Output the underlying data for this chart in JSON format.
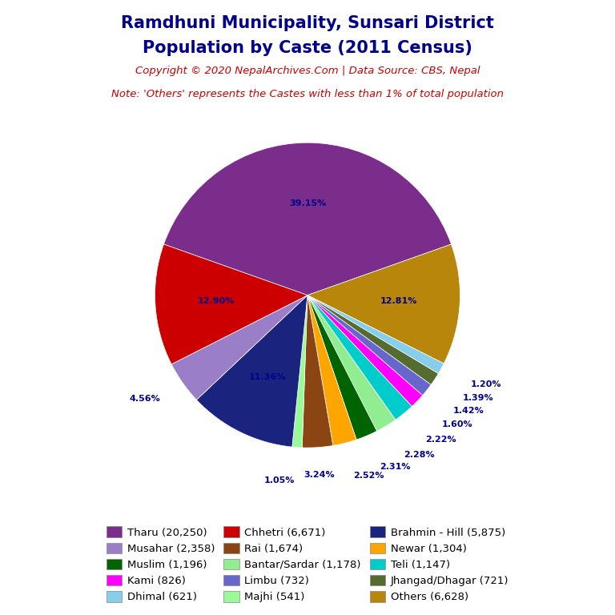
{
  "title_line1": "Ramdhuni Municipality, Sunsari District",
  "title_line2": "Population by Caste (2011 Census)",
  "copyright": "Copyright © 2020 NepalArchives.Com | Data Source: CBS, Nepal",
  "note": "Note: 'Others' represents the Castes with less than 1% of total population",
  "slices": [
    {
      "label": "Tharu",
      "value": 20250,
      "color": "#7B2D8B"
    },
    {
      "label": "Others",
      "value": 6628,
      "color": "#B8860B"
    },
    {
      "label": "Dhimal",
      "value": 621,
      "color": "#87CEEB"
    },
    {
      "label": "Jhangad/Dhagar",
      "value": 721,
      "color": "#556B2F"
    },
    {
      "label": "Limbu",
      "value": 732,
      "color": "#6666CC"
    },
    {
      "label": "Kami",
      "value": 826,
      "color": "#FF00FF"
    },
    {
      "label": "Teli",
      "value": 1147,
      "color": "#00CCCC"
    },
    {
      "label": "Bantar/Sardar",
      "value": 1178,
      "color": "#90EE90"
    },
    {
      "label": "Muslim",
      "value": 1196,
      "color": "#006400"
    },
    {
      "label": "Newar",
      "value": 1304,
      "color": "#FFA500"
    },
    {
      "label": "Rai",
      "value": 1674,
      "color": "#8B4513"
    },
    {
      "label": "Majhi",
      "value": 541,
      "color": "#98FB98"
    },
    {
      "label": "Brahmin - Hill",
      "value": 5875,
      "color": "#1A237E"
    },
    {
      "label": "Musahar",
      "value": 2358,
      "color": "#9B7EC8"
    },
    {
      "label": "Chhetri",
      "value": 6671,
      "color": "#CC0000"
    }
  ],
  "legend_order": [
    {
      "label": "Tharu",
      "value": 20250,
      "color": "#7B2D8B"
    },
    {
      "label": "Musahar",
      "value": 2358,
      "color": "#9B7EC8"
    },
    {
      "label": "Muslim",
      "value": 1196,
      "color": "#006400"
    },
    {
      "label": "Kami",
      "value": 826,
      "color": "#FF00FF"
    },
    {
      "label": "Dhimal",
      "value": 621,
      "color": "#87CEEB"
    },
    {
      "label": "Chhetri",
      "value": 6671,
      "color": "#CC0000"
    },
    {
      "label": "Rai",
      "value": 1674,
      "color": "#8B4513"
    },
    {
      "label": "Bantar/Sardar",
      "value": 1178,
      "color": "#90EE90"
    },
    {
      "label": "Limbu",
      "value": 732,
      "color": "#6666CC"
    },
    {
      "label": "Majhi",
      "value": 541,
      "color": "#98FB98"
    },
    {
      "label": "Brahmin - Hill",
      "value": 5875,
      "color": "#1A237E"
    },
    {
      "label": "Newar",
      "value": 1304,
      "color": "#FFA500"
    },
    {
      "label": "Teli",
      "value": 1147,
      "color": "#00CCCC"
    },
    {
      "label": "Jhangad/Dhagar",
      "value": 721,
      "color": "#556B2F"
    },
    {
      "label": "Others",
      "value": 6628,
      "color": "#B8860B"
    }
  ],
  "title_color": "#00008B",
  "copyright_color": "#CC0000",
  "note_color": "#CC0000",
  "pct_color": "#00008B",
  "bg_color": "#FFFFFF",
  "start_angle": 90
}
